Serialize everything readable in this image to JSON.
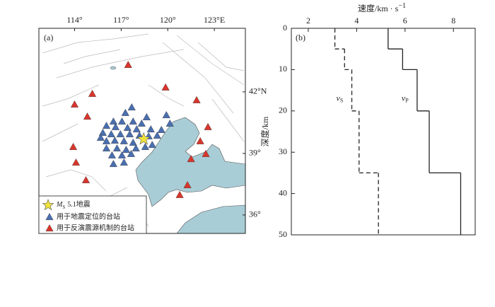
{
  "map": {
    "label": "(a)",
    "lon_range": [
      111.7,
      125
    ],
    "lat_range": [
      35.1,
      45.1
    ],
    "lon_ticks": [
      {
        "value": 114,
        "label": "114°"
      },
      {
        "value": 117,
        "label": "117°"
      },
      {
        "value": 120,
        "label": "120°"
      },
      {
        "value": 123,
        "label": "123°E"
      }
    ],
    "lat_ticks": [
      {
        "value": 42,
        "label": "42°N"
      },
      {
        "value": 39,
        "label": "39°"
      },
      {
        "value": 36,
        "label": "36°"
      }
    ],
    "epicenter": {
      "lon": 118.45,
      "lat": 39.7,
      "color": "#f2e33b"
    },
    "location_stations": {
      "color": "#4a6fb0",
      "points": [
        [
          117.68,
          41.24
        ],
        [
          117.27,
          40.97
        ],
        [
          118.64,
          40.76
        ],
        [
          119.91,
          40.86
        ],
        [
          116.5,
          40.55
        ],
        [
          117.05,
          40.55
        ],
        [
          117.77,
          40.55
        ],
        [
          118.32,
          40.45
        ],
        [
          116.05,
          40.34
        ],
        [
          116.64,
          40.28
        ],
        [
          117.41,
          40.24
        ],
        [
          118.0,
          40.17
        ],
        [
          118.91,
          40.17
        ],
        [
          119.59,
          40.14
        ],
        [
          115.82,
          40.0
        ],
        [
          116.36,
          39.93
        ],
        [
          116.95,
          39.93
        ],
        [
          117.55,
          39.93
        ],
        [
          118.18,
          39.86
        ],
        [
          118.77,
          39.83
        ],
        [
          119.32,
          39.86
        ],
        [
          116.05,
          39.59
        ],
        [
          116.59,
          39.62
        ],
        [
          117.18,
          39.59
        ],
        [
          117.77,
          39.52
        ],
        [
          116.05,
          39.24
        ],
        [
          116.73,
          39.24
        ],
        [
          117.32,
          39.17
        ],
        [
          117.95,
          39.24
        ],
        [
          118.55,
          39.31
        ],
        [
          116.41,
          38.9
        ],
        [
          117.05,
          38.9
        ],
        [
          117.64,
          38.97
        ],
        [
          116.5,
          38.48
        ],
        [
          117.18,
          38.55
        ],
        [
          115.68,
          39.76
        ],
        [
          120.14,
          40.45
        ],
        [
          119.0,
          39.41
        ]
      ]
    },
    "mechanism_stations": {
      "color": "#d9352b",
      "points": [
        [
          117.45,
          43.31
        ],
        [
          119.86,
          42.21
        ],
        [
          115.14,
          41.9
        ],
        [
          114.0,
          41.38
        ],
        [
          114.82,
          40.79
        ],
        [
          121.86,
          41.59
        ],
        [
          122.59,
          40.28
        ],
        [
          113.91,
          39.31
        ],
        [
          122.09,
          39.59
        ],
        [
          114.09,
          38.55
        ],
        [
          114.73,
          37.69
        ],
        [
          122.45,
          38.97
        ],
        [
          121.5,
          38.72
        ],
        [
          120.77,
          36.97
        ],
        [
          121.27,
          37.45
        ]
      ]
    },
    "legend": [
      {
        "symbol": "M",
        "subscript": "S",
        "text": "5.1地震"
      },
      {
        "text": "用于地震定位的台站"
      },
      {
        "text": "用于反演震源机制的台站"
      }
    ]
  },
  "chart_data": {
    "type": "step",
    "label": "(b)",
    "xlabel": {
      "text": "速度/km · s",
      "superscript": "−1"
    },
    "ylabel": "深度/km",
    "xlim": [
      1.3,
      8.9
    ],
    "xticks": [
      2,
      4,
      6,
      8
    ],
    "ylim": [
      0,
      50
    ],
    "yticks": [
      0,
      10,
      20,
      30,
      40,
      50
    ],
    "depth_bounds": [
      0,
      5,
      10,
      20,
      35,
      50
    ],
    "series": [
      {
        "name": "v",
        "subscript": "S",
        "color": "#222222",
        "dashed": true,
        "values": [
          3.1,
          3.5,
          3.8,
          4.1,
          4.9
        ]
      },
      {
        "name": "v",
        "subscript": "P",
        "color": "#222222",
        "dashed": false,
        "values": [
          5.3,
          5.9,
          6.5,
          7.0,
          8.3
        ]
      }
    ]
  }
}
